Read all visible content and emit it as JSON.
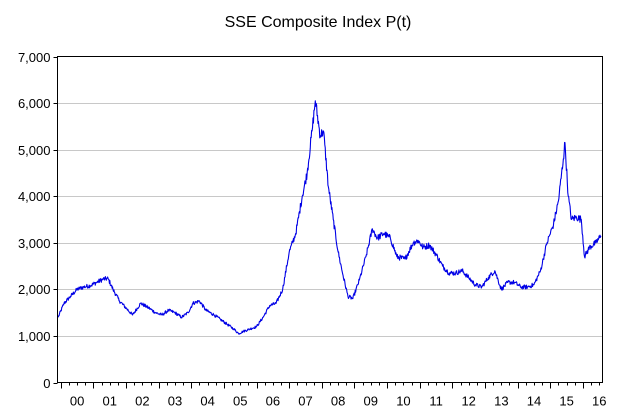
{
  "chart_data": {
    "type": "line",
    "title": "SSE Composite Index P(t)",
    "xlabel": "",
    "ylabel": "",
    "ylim": [
      0,
      7000
    ],
    "xlim": [
      1999.9,
      2016.6
    ],
    "grid": true,
    "y_ticks": [
      0,
      1000,
      2000,
      3000,
      4000,
      5000,
      6000,
      7000
    ],
    "y_tick_labels": [
      "0",
      "1,000",
      "2,000",
      "3,000",
      "4,000",
      "5,000",
      "6,000",
      "7,000"
    ],
    "x_tick_labels": [
      "00",
      "01",
      "02",
      "03",
      "04",
      "05",
      "06",
      "07",
      "08",
      "09",
      "10",
      "11",
      "12",
      "13",
      "14",
      "15",
      "16"
    ],
    "x_tick_years": [
      2000,
      2001,
      2002,
      2003,
      2004,
      2005,
      2006,
      2007,
      2008,
      2009,
      2010,
      2011,
      2012,
      2013,
      2014,
      2015,
      2016
    ],
    "series": [
      {
        "name": "SSE Composite Index",
        "color": "#0000e6",
        "x": [
          1999.92,
          2000.1,
          2000.3,
          2000.5,
          2000.7,
          2000.9,
          2001.1,
          2001.3,
          2001.45,
          2001.6,
          2001.8,
          2002.0,
          2002.2,
          2002.45,
          2002.7,
          2002.9,
          2003.1,
          2003.3,
          2003.5,
          2003.7,
          2003.9,
          2004.05,
          2004.25,
          2004.45,
          2004.7,
          2004.9,
          2005.1,
          2005.3,
          2005.45,
          2005.6,
          2005.8,
          2006.0,
          2006.2,
          2006.4,
          2006.6,
          2006.8,
          2007.0,
          2007.2,
          2007.4,
          2007.55,
          2007.7,
          2007.8,
          2007.95,
          2008.05,
          2008.2,
          2008.35,
          2008.5,
          2008.65,
          2008.8,
          2008.95,
          2009.15,
          2009.35,
          2009.55,
          2009.7,
          2009.9,
          2010.1,
          2010.3,
          2010.55,
          2010.8,
          2010.95,
          2011.1,
          2011.3,
          2011.5,
          2011.7,
          2011.9,
          2012.1,
          2012.3,
          2012.5,
          2012.7,
          2012.9,
          2013.1,
          2013.3,
          2013.5,
          2013.7,
          2013.9,
          2014.1,
          2014.3,
          2014.5,
          2014.7,
          2014.9,
          2015.1,
          2015.25,
          2015.4,
          2015.45,
          2015.55,
          2015.65,
          2015.8,
          2015.95,
          2016.05,
          2016.2,
          2016.4,
          2016.55
        ],
        "values": [
          1400,
          1700,
          1850,
          2000,
          2050,
          2080,
          2150,
          2220,
          2230,
          2000,
          1750,
          1600,
          1450,
          1700,
          1600,
          1500,
          1450,
          1550,
          1500,
          1400,
          1500,
          1700,
          1750,
          1550,
          1450,
          1350,
          1250,
          1150,
          1050,
          1100,
          1150,
          1200,
          1400,
          1650,
          1700,
          2000,
          2800,
          3200,
          4000,
          4500,
          5400,
          6050,
          5300,
          5400,
          4200,
          3500,
          2800,
          2300,
          1850,
          1800,
          2200,
          2700,
          3300,
          3100,
          3200,
          3100,
          2700,
          2650,
          3000,
          3050,
          2900,
          2950,
          2750,
          2500,
          2350,
          2350,
          2400,
          2250,
          2100,
          2050,
          2250,
          2400,
          2000,
          2150,
          2150,
          2050,
          2050,
          2100,
          2400,
          3000,
          3400,
          3900,
          4800,
          5150,
          4000,
          3500,
          3550,
          3500,
          2700,
          2900,
          3000,
          3150
        ]
      }
    ]
  }
}
